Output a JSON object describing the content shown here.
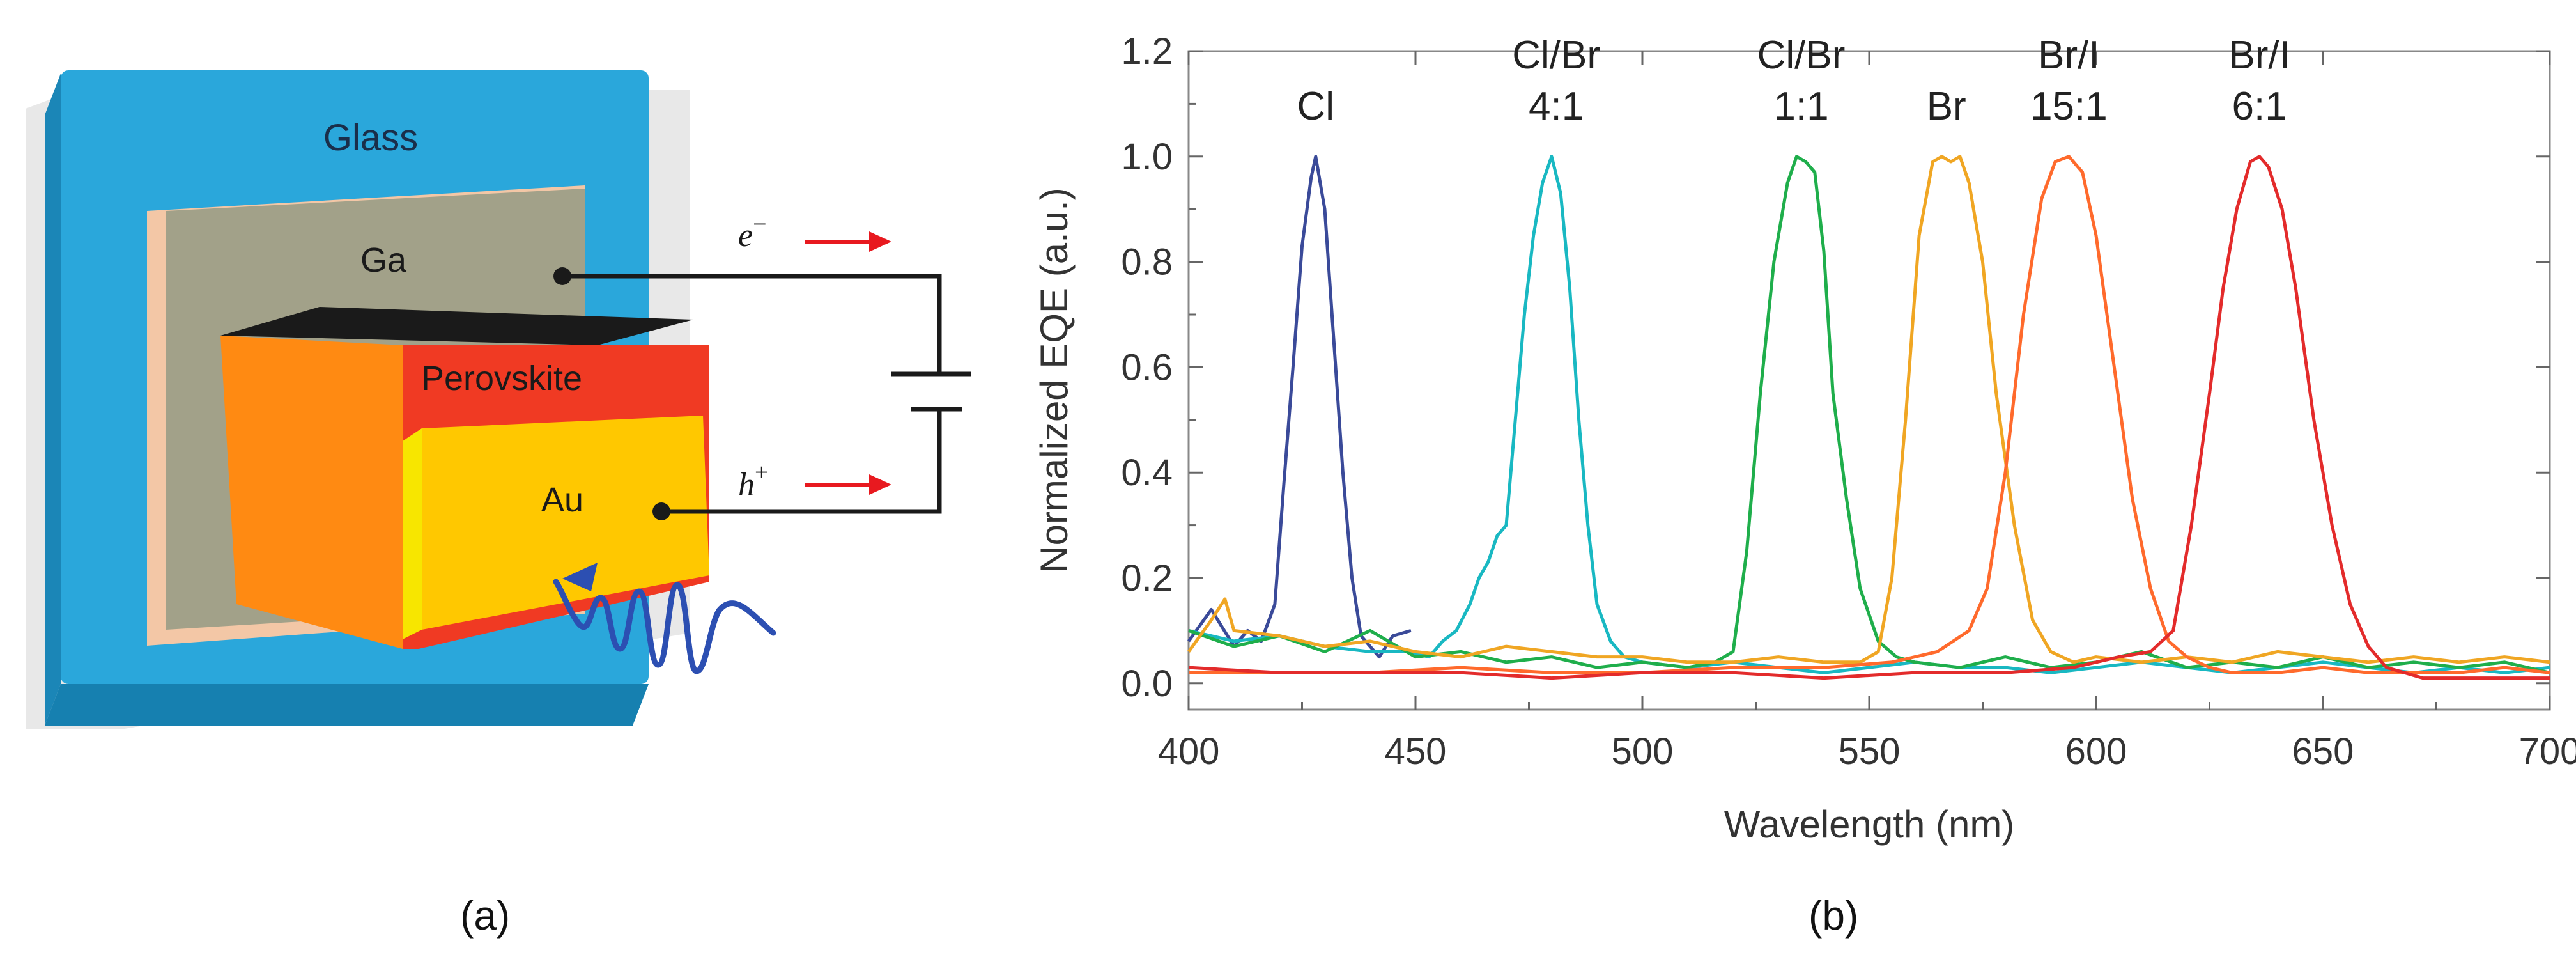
{
  "panel_a": {
    "caption": "(a)",
    "glass_label": "Glass",
    "ga_label": "Ga",
    "perovskite_label": "Perovskite",
    "au_label": "Au",
    "electron_label": "e",
    "electron_sup": "−",
    "hole_label": "h",
    "hole_sup": "+",
    "colors": {
      "glass": "#2aa7db",
      "ga": "#a2a189",
      "perovskite_front": "#f03a23",
      "perovskite_side": "#ff8a12",
      "au": "#ffc800",
      "arrow": "#e8191f",
      "light": "#2c4fb2"
    }
  },
  "panel_b": {
    "caption": "(b)",
    "chart_data": {
      "type": "line",
      "xlabel": "Wavelength (nm)",
      "ylabel": "Normalized EQE (a.u.)",
      "xlim": [
        400,
        700
      ],
      "ylim": [
        -0.05,
        1.2
      ],
      "xticks": [
        400,
        450,
        500,
        550,
        600,
        650,
        700
      ],
      "yticks": [
        0.0,
        0.2,
        0.4,
        0.6,
        0.8,
        1.0,
        1.2
      ],
      "ytick_labels": [
        "0.0",
        "0.2",
        "0.4",
        "0.6",
        "0.8",
        "1.0",
        "1.2"
      ],
      "series": [
        {
          "name": "Cl",
          "color": "#3a4a99",
          "label_lines": [
            "Cl"
          ],
          "label_x": 428,
          "label_y": 1.07,
          "x": [
            400,
            405,
            410,
            413,
            416,
            419,
            421,
            423,
            425,
            427,
            428,
            430,
            432,
            434,
            436,
            438,
            440,
            442,
            445,
            449
          ],
          "y": [
            0.08,
            0.14,
            0.07,
            0.1,
            0.08,
            0.15,
            0.38,
            0.6,
            0.83,
            0.96,
            1.0,
            0.9,
            0.65,
            0.4,
            0.2,
            0.09,
            0.07,
            0.05,
            0.09,
            0.1
          ]
        },
        {
          "name": "Cl/Br 4:1",
          "color": "#19b8c2",
          "label_lines": [
            "Cl/Br",
            "4:1"
          ],
          "label_x": 481,
          "label_y": 1.07,
          "x": [
            400,
            410,
            420,
            430,
            440,
            448,
            453,
            456,
            459,
            462,
            464,
            466,
            468,
            470,
            472,
            474,
            476,
            478,
            480,
            482,
            484,
            486,
            488,
            490,
            493,
            496,
            500,
            510,
            520,
            530,
            540,
            550,
            560,
            570,
            580,
            590,
            600,
            610,
            620,
            630,
            640,
            650,
            660,
            670,
            680,
            690,
            700
          ],
          "y": [
            0.1,
            0.08,
            0.09,
            0.07,
            0.06,
            0.06,
            0.05,
            0.08,
            0.1,
            0.15,
            0.2,
            0.23,
            0.28,
            0.3,
            0.5,
            0.7,
            0.85,
            0.95,
            1.0,
            0.93,
            0.75,
            0.5,
            0.3,
            0.15,
            0.08,
            0.05,
            0.04,
            0.03,
            0.04,
            0.03,
            0.02,
            0.03,
            0.04,
            0.03,
            0.03,
            0.02,
            0.03,
            0.04,
            0.03,
            0.02,
            0.03,
            0.04,
            0.03,
            0.02,
            0.03,
            0.02,
            0.03
          ]
        },
        {
          "name": "Cl/Br 1:1",
          "color": "#1fae4b",
          "label_lines": [
            "Cl/Br",
            "1:1"
          ],
          "label_x": 535,
          "label_y": 1.07,
          "x": [
            400,
            410,
            420,
            430,
            440,
            450,
            460,
            470,
            480,
            490,
            500,
            510,
            516,
            520,
            523,
            526,
            529,
            532,
            534,
            536,
            538,
            540,
            542,
            545,
            548,
            552,
            556,
            560,
            570,
            580,
            590,
            600,
            610,
            620,
            630,
            640,
            650,
            660,
            670,
            680,
            690,
            700
          ],
          "y": [
            0.1,
            0.07,
            0.09,
            0.06,
            0.1,
            0.05,
            0.06,
            0.04,
            0.05,
            0.03,
            0.04,
            0.03,
            0.04,
            0.06,
            0.25,
            0.55,
            0.8,
            0.95,
            1.0,
            0.99,
            0.97,
            0.82,
            0.55,
            0.35,
            0.18,
            0.08,
            0.05,
            0.04,
            0.03,
            0.05,
            0.03,
            0.04,
            0.06,
            0.03,
            0.04,
            0.03,
            0.05,
            0.03,
            0.04,
            0.03,
            0.04,
            0.02
          ]
        },
        {
          "name": "Br",
          "color": "#f0a623",
          "label_lines": [
            "Br"
          ],
          "label_x": 567,
          "label_y": 1.07,
          "x": [
            400,
            405,
            408,
            410,
            420,
            430,
            440,
            450,
            460,
            470,
            480,
            490,
            500,
            510,
            520,
            530,
            540,
            548,
            552,
            555,
            558,
            561,
            564,
            566,
            568,
            570,
            572,
            575,
            578,
            582,
            586,
            590,
            595,
            600,
            610,
            620,
            630,
            640,
            650,
            660,
            670,
            680,
            690,
            700
          ],
          "y": [
            0.06,
            0.12,
            0.16,
            0.1,
            0.09,
            0.07,
            0.08,
            0.06,
            0.05,
            0.07,
            0.06,
            0.05,
            0.05,
            0.04,
            0.04,
            0.05,
            0.04,
            0.04,
            0.06,
            0.2,
            0.5,
            0.85,
            0.99,
            1.0,
            0.99,
            1.0,
            0.95,
            0.8,
            0.55,
            0.3,
            0.12,
            0.06,
            0.04,
            0.05,
            0.04,
            0.05,
            0.04,
            0.06,
            0.05,
            0.04,
            0.05,
            0.04,
            0.05,
            0.04
          ]
        },
        {
          "name": "Br/I 15:1",
          "color": "#ff6a2c",
          "label_lines": [
            "Br/I",
            "15:1"
          ],
          "label_x": 594,
          "label_y": 1.07,
          "x": [
            400,
            420,
            440,
            460,
            480,
            500,
            520,
            540,
            555,
            565,
            572,
            576,
            580,
            584,
            588,
            591,
            594,
            597,
            600,
            604,
            608,
            612,
            616,
            620,
            625,
            630,
            640,
            650,
            660,
            670,
            680,
            690,
            700
          ],
          "y": [
            0.02,
            0.02,
            0.02,
            0.03,
            0.02,
            0.02,
            0.03,
            0.03,
            0.04,
            0.06,
            0.1,
            0.18,
            0.4,
            0.7,
            0.92,
            0.99,
            1.0,
            0.97,
            0.85,
            0.6,
            0.35,
            0.18,
            0.08,
            0.05,
            0.03,
            0.02,
            0.02,
            0.03,
            0.02,
            0.02,
            0.02,
            0.03,
            0.02
          ]
        },
        {
          "name": "Br/I 6:1",
          "color": "#e32b2b",
          "label_lines": [
            "Br/I",
            "6:1"
          ],
          "label_x": 636,
          "label_y": 1.07,
          "x": [
            400,
            420,
            440,
            460,
            480,
            500,
            520,
            540,
            560,
            580,
            595,
            605,
            612,
            617,
            621,
            625,
            628,
            631,
            634,
            636,
            638,
            641,
            644,
            648,
            652,
            656,
            660,
            664,
            668,
            672,
            680,
            690,
            700
          ],
          "y": [
            0.03,
            0.02,
            0.02,
            0.02,
            0.01,
            0.02,
            0.02,
            0.01,
            0.02,
            0.02,
            0.03,
            0.05,
            0.06,
            0.1,
            0.3,
            0.55,
            0.75,
            0.9,
            0.99,
            1.0,
            0.98,
            0.9,
            0.75,
            0.5,
            0.3,
            0.15,
            0.07,
            0.03,
            0.02,
            0.01,
            0.01,
            0.01,
            0.01
          ]
        }
      ]
    }
  }
}
